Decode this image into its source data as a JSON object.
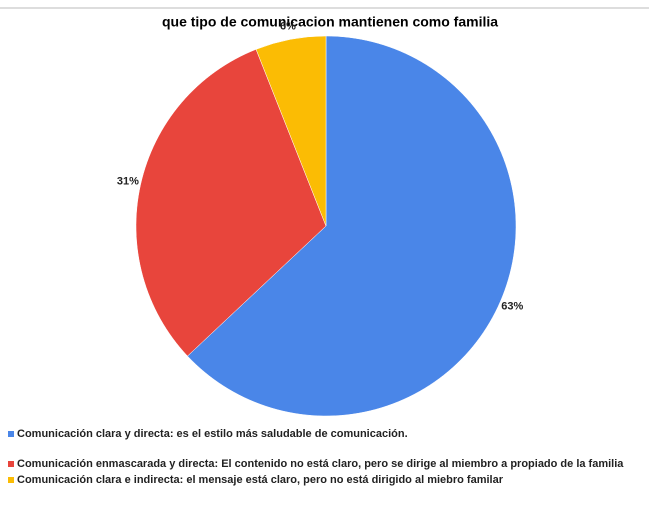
{
  "chart_data": {
    "type": "pie",
    "title": "que tipo de comunicacion mantienen como familia",
    "categories": [
      "Comunicación clara y directa: es el estilo más saludable de comunicación.",
      "Comunicación enmascarada y directa: El contenido no está claro, pero se dirige al miembro a propiado de la familia",
      "Comunicación clara e indirecta: el mensaje está claro, pero no está dirigido al miebro familar"
    ],
    "values": [
      63,
      31,
      6
    ],
    "value_labels": [
      "63%",
      "31%",
      "6%"
    ],
    "colors": [
      "#4a86e8",
      "#e8453c",
      "#fbbc04"
    ]
  }
}
